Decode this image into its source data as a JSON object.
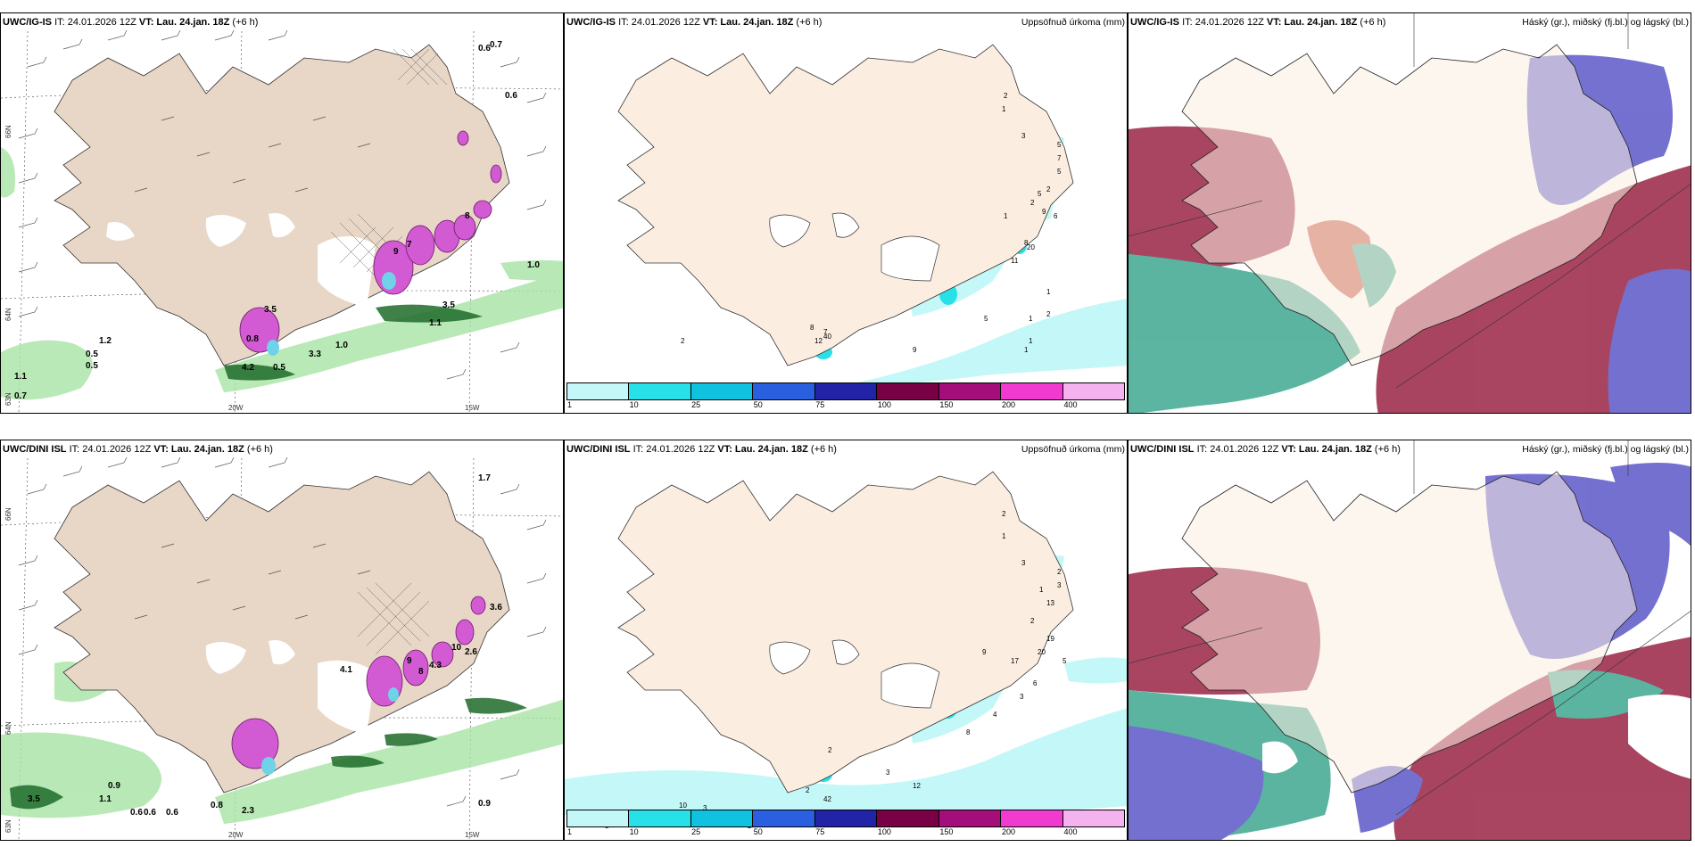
{
  "colors": {
    "land": "#fbeee1",
    "land_beige": "#e8d6c6",
    "precip": [
      "#c4f7f7",
      "#28e0e8",
      "#10c2e0",
      "#2a5fe0",
      "#2323a8",
      "#780045",
      "#a40e7a",
      "#f03ad0",
      "#f4b2ee"
    ],
    "cloud_high": "#5c58c8",
    "cloud_mid": "#9a2444",
    "cloud_low": "#3fa890"
  },
  "panels": {
    "p1": {
      "model": "UWC/IG-IS",
      "it": "IT: 24.01.2026 12Z",
      "vt_label": "VT:",
      "vt_value": "Lau. 24.jan. 18Z",
      "lead": "(+6 h)",
      "lat_labels": [
        "66N",
        "64N",
        "63N"
      ],
      "lon_labels": [
        "20W",
        "15W"
      ],
      "values": [
        "0.6",
        "0.7",
        "0.6",
        "1.0",
        "3.5",
        "1.1",
        "1.0",
        "1.2",
        "3.3",
        "0.5",
        "0.5",
        "0.5",
        "1.1",
        "0.7",
        "3.5",
        "4.2",
        "0.8",
        "9",
        "7",
        "8"
      ]
    },
    "p2": {
      "model": "UWC/IG-IS",
      "it": "IT: 24.01.2026 12Z",
      "vt_label": "VT:",
      "vt_value": "Lau. 24.jan. 18Z",
      "lead": "(+6 h)",
      "right_title": "Uppsöfnuð úrkoma (mm)",
      "values": [
        "2",
        "1",
        "3",
        "5",
        "7",
        "5",
        "2",
        "5",
        "2",
        "9",
        "6",
        "1",
        "8",
        "20",
        "11",
        "1",
        "2",
        "1",
        "5",
        "1",
        "1",
        "9",
        "7",
        "12",
        "5",
        "40",
        "8",
        "2"
      ]
    },
    "p3": {
      "model": "UWC/IG-IS",
      "it": "IT: 24.01.2026 12Z",
      "vt_label": "VT:",
      "vt_value": "Lau. 24.jan. 18Z",
      "lead": "(+6 h)",
      "right_title": "Háský (gr.), miðský (fj.bl.) og lágský (bl.)"
    },
    "p4": {
      "model": "UWC/DINI ISL",
      "it": "IT: 24.01.2026 12Z",
      "vt_label": "VT:",
      "vt_value": "Lau. 24.jan. 18Z",
      "lead": "(+6 h)",
      "lat_labels": [
        "66N",
        "64N",
        "63N"
      ],
      "lon_labels": [
        "20W",
        "15W"
      ],
      "values": [
        "1.7",
        "3.6",
        "2.6",
        "4.3",
        "4.1",
        "0.9",
        "1.1",
        "3.5",
        "0.6",
        "0.6",
        "0.6",
        "0.8",
        "2.3",
        "0.9",
        "9",
        "8",
        "10"
      ]
    },
    "p5": {
      "model": "UWC/DINI ISL",
      "it": "IT: 24.01.2026 12Z",
      "vt_label": "VT:",
      "vt_value": "Lau. 24.jan. 18Z",
      "lead": "(+6 h)",
      "right_title": "Uppsöfnuð úrkoma (mm)",
      "values": [
        "2",
        "1",
        "3",
        "2",
        "3",
        "1",
        "13",
        "9",
        "2",
        "19",
        "20",
        "17",
        "6",
        "5",
        "3",
        "4",
        "8",
        "12",
        "3",
        "42",
        "2",
        "2",
        "4",
        "10",
        "3",
        "3",
        "2"
      ]
    },
    "p6": {
      "model": "UWC/DINI ISL",
      "it": "IT: 24.01.2026 12Z",
      "vt_label": "VT:",
      "vt_value": "Lau. 24.jan. 18Z",
      "lead": "(+6 h)",
      "right_title": "Háský (gr.), miðský (fj.bl.) og lágský (bl.)"
    }
  },
  "colorbar": {
    "labels": [
      "1",
      "10",
      "25",
      "50",
      "75",
      "100",
      "150",
      "200",
      "400"
    ]
  }
}
